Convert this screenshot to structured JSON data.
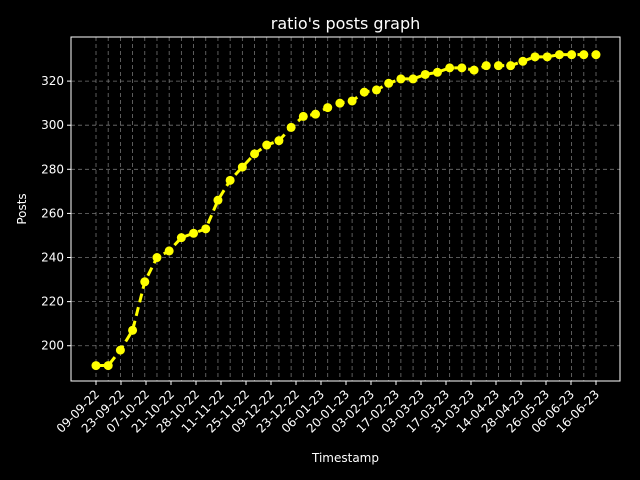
{
  "colors": {
    "background": "#000000",
    "foreground": "#ffffff",
    "series": "#ffff00",
    "grid": "#888888"
  },
  "chart_data": {
    "type": "line",
    "title": "ratio's posts graph",
    "xlabel": "Timestamp",
    "ylabel": "Posts",
    "ylim": [
      184,
      340
    ],
    "yticks": [
      200,
      220,
      240,
      260,
      280,
      300,
      320
    ],
    "grid": true,
    "line_style": "dashed",
    "marker": "circle",
    "x_tick_labels": [
      "09-09-22",
      "23-09-22",
      "07-10-22",
      "21-10-22",
      "28-10-22",
      "11-11-22",
      "25-11-22",
      "09-12-22",
      "23-12-22",
      "06-01-23",
      "20-01-23",
      "03-02-23",
      "17-02-23",
      "03-03-23",
      "17-03-23",
      "31-03-23",
      "14-04-23",
      "28-04-23",
      "26-05-23",
      "06-06-23",
      "16-06-23"
    ],
    "series": [
      {
        "values": [
          191,
          191,
          198,
          207,
          229,
          240,
          243,
          249,
          251,
          253,
          266,
          275,
          281,
          287,
          291,
          293,
          299,
          304,
          305,
          308,
          310,
          311,
          315,
          316,
          319,
          321,
          321,
          323,
          324,
          326,
          326,
          325,
          327,
          327,
          327,
          329,
          331,
          331,
          332,
          332,
          332,
          332
        ]
      }
    ]
  }
}
